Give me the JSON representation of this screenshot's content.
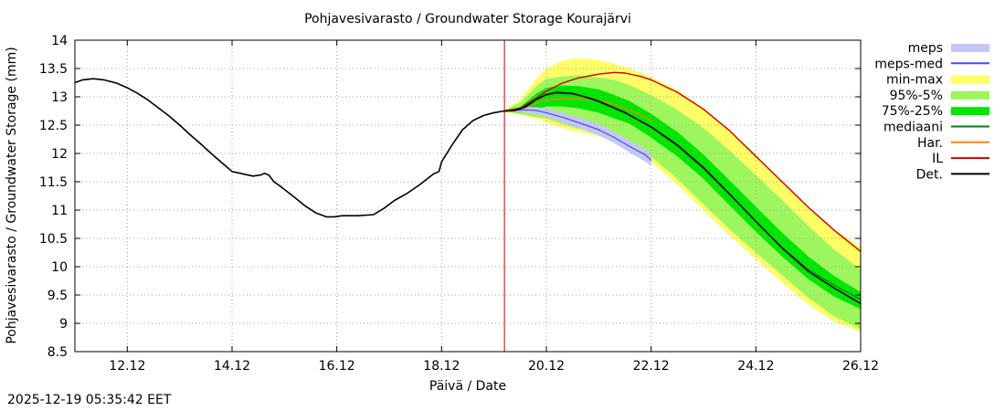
{
  "timestamp": "2025-12-19 05:35:42 EET",
  "chart_data": {
    "type": "line",
    "title": "Pohjavesivarasto / Groundwater Storage   Kourajärvi",
    "xlabel": "Päivä / Date",
    "ylabel": "Pohjavesivarasto / Groundwater Storage (mm)",
    "xlim": [
      11.0,
      26.0
    ],
    "ylim": [
      8.5,
      14.0
    ],
    "grid": true,
    "legend_position": "outside-right",
    "x_ticks": [
      12,
      14,
      16,
      18,
      20,
      22,
      24,
      26
    ],
    "x_tick_labels": [
      "12.12",
      "14.12",
      "16.12",
      "18.12",
      "20.12",
      "22.12",
      "24.12",
      "26.12"
    ],
    "y_ticks": [
      8.5,
      9,
      9.5,
      10,
      10.5,
      11,
      11.5,
      12,
      12.5,
      13,
      13.5,
      14
    ],
    "y_tick_labels": [
      "8.5",
      "9",
      "9.5",
      "10",
      "10.5",
      "11",
      "11.5",
      "12",
      "12.5",
      "13",
      "13.5",
      "14"
    ],
    "forecast_start_x": 19.2,
    "legend": [
      {
        "key": "meps",
        "label": "meps",
        "kind": "band",
        "color": "#c4c7f8"
      },
      {
        "key": "meps_med",
        "label": "meps-med",
        "kind": "line",
        "color": "#4c4ce0"
      },
      {
        "key": "minmax",
        "label": "min-max",
        "kind": "band",
        "color": "#fefe66"
      },
      {
        "key": "p95_5",
        "label": "95%-5%",
        "kind": "band",
        "color": "#9ef65e"
      },
      {
        "key": "p75_25",
        "label": "75%-25%",
        "kind": "band",
        "color": "#00e600"
      },
      {
        "key": "median",
        "label": "mediaani",
        "kind": "line",
        "color": "#008000"
      },
      {
        "key": "har",
        "label": "Har.",
        "kind": "line",
        "color": "#ff8000"
      },
      {
        "key": "il",
        "label": "IL",
        "kind": "line",
        "color": "#d00000"
      },
      {
        "key": "det",
        "label": "Det.",
        "kind": "line",
        "color": "#000000"
      }
    ],
    "colors": {
      "forecast_line": "#c00000",
      "grid": "#a0a0a0",
      "frame": "#000000"
    },
    "series": {
      "observed": {
        "x": [
          11.0,
          11.15,
          11.35,
          11.55,
          11.8,
          12.0,
          12.2,
          12.4,
          12.6,
          12.8,
          13.0,
          13.2,
          13.4,
          13.6,
          13.8,
          14.0,
          14.2,
          14.4,
          14.55,
          14.62,
          14.7,
          14.8,
          14.95,
          15.2,
          15.4,
          15.6,
          15.8,
          15.95,
          16.1,
          16.25,
          16.4,
          16.7,
          16.9,
          17.1,
          17.35,
          17.6,
          17.85,
          17.95,
          18.0,
          18.2,
          18.4,
          18.6,
          18.8,
          19.0,
          19.2
        ],
        "y": [
          13.25,
          13.3,
          13.32,
          13.3,
          13.24,
          13.16,
          13.06,
          12.94,
          12.8,
          12.66,
          12.5,
          12.33,
          12.17,
          12.0,
          11.84,
          11.68,
          11.64,
          11.6,
          11.62,
          11.65,
          11.62,
          11.5,
          11.4,
          11.22,
          11.07,
          10.95,
          10.88,
          10.88,
          10.9,
          10.9,
          10.9,
          10.92,
          11.03,
          11.17,
          11.3,
          11.46,
          11.64,
          11.68,
          11.85,
          12.15,
          12.42,
          12.58,
          12.67,
          12.72,
          12.75
        ]
      },
      "det": {
        "x": [
          19.2,
          19.4,
          19.6,
          19.8,
          20.0,
          20.2,
          20.5,
          20.8,
          21.0,
          21.5,
          22.0,
          22.5,
          23.0,
          23.5,
          24.0,
          24.5,
          25.0,
          25.5,
          26.0
        ],
        "y": [
          12.75,
          12.76,
          12.82,
          12.95,
          13.04,
          13.08,
          13.06,
          12.98,
          12.92,
          12.72,
          12.47,
          12.15,
          11.75,
          11.28,
          10.8,
          10.33,
          9.92,
          9.62,
          9.35
        ]
      },
      "median": {
        "x": [
          19.2,
          19.4,
          19.6,
          19.8,
          20.0,
          20.2,
          20.5,
          20.8,
          21.0,
          21.5,
          22.0,
          22.5,
          23.0,
          23.5,
          24.0,
          24.5,
          25.0,
          25.5,
          26.0
        ],
        "y": [
          12.75,
          12.76,
          12.84,
          12.96,
          13.03,
          13.06,
          13.05,
          12.99,
          12.93,
          12.73,
          12.46,
          12.13,
          11.73,
          11.27,
          10.8,
          10.34,
          9.95,
          9.67,
          9.42
        ]
      },
      "il": {
        "x": [
          19.2,
          19.5,
          19.8,
          20.0,
          20.3,
          20.6,
          21.0,
          21.3,
          21.5,
          21.8,
          22.0,
          22.5,
          23.0,
          23.5,
          24.0,
          24.5,
          25.0,
          25.5,
          26.0
        ],
        "y": [
          12.75,
          12.8,
          12.97,
          13.1,
          13.24,
          13.33,
          13.4,
          13.43,
          13.42,
          13.36,
          13.3,
          13.08,
          12.78,
          12.4,
          11.95,
          11.5,
          11.05,
          10.64,
          10.27
        ]
      },
      "har": {
        "x": [
          19.2,
          19.5,
          19.8,
          20.0,
          20.3,
          20.6,
          21.0,
          21.3,
          21.5,
          21.8,
          22.0
        ],
        "y": [
          12.75,
          12.78,
          12.88,
          12.94,
          12.97,
          12.96,
          12.93,
          12.87,
          12.8,
          12.68,
          12.58
        ]
      },
      "meps_med": {
        "x": [
          19.2,
          19.4,
          19.6,
          19.8,
          20.0,
          20.3,
          20.6,
          21.0,
          21.3,
          21.6,
          21.9,
          22.0
        ],
        "y": [
          12.75,
          12.76,
          12.77,
          12.76,
          12.72,
          12.64,
          12.55,
          12.42,
          12.28,
          12.12,
          11.97,
          11.88
        ]
      },
      "meps": {
        "x": [
          19.2,
          19.4,
          19.6,
          19.8,
          20.0,
          20.3,
          20.6,
          21.0,
          21.3,
          21.6,
          21.9,
          22.0
        ],
        "upper": [
          12.76,
          12.79,
          12.82,
          12.82,
          12.8,
          12.72,
          12.64,
          12.52,
          12.38,
          12.22,
          12.07,
          11.99
        ],
        "lower": [
          12.74,
          12.73,
          12.72,
          12.7,
          12.65,
          12.55,
          12.45,
          12.32,
          12.18,
          12.01,
          11.85,
          11.78
        ]
      },
      "minmax": {
        "x": [
          19.2,
          19.5,
          19.8,
          20.0,
          20.3,
          20.6,
          21.0,
          21.3,
          21.6,
          22.0,
          22.5,
          23.0,
          23.5,
          24.0,
          24.5,
          25.0,
          25.5,
          26.0
        ],
        "upper": [
          12.77,
          12.95,
          13.3,
          13.5,
          13.63,
          13.68,
          13.65,
          13.58,
          13.5,
          13.35,
          13.12,
          12.8,
          12.42,
          11.98,
          11.5,
          11.05,
          10.66,
          10.35
        ],
        "lower": [
          12.72,
          12.68,
          12.62,
          12.55,
          12.45,
          12.38,
          12.3,
          12.22,
          12.1,
          11.85,
          11.45,
          11.0,
          10.55,
          10.13,
          9.72,
          9.33,
          9.03,
          8.85
        ]
      },
      "p95_5": {
        "x": [
          19.2,
          19.5,
          19.8,
          20.0,
          20.3,
          20.6,
          21.0,
          21.3,
          21.6,
          22.0,
          22.5,
          23.0,
          23.5,
          24.0,
          24.5,
          25.0,
          25.5,
          26.0
        ],
        "upper": [
          12.76,
          12.9,
          13.18,
          13.32,
          13.36,
          13.38,
          13.34,
          13.3,
          13.2,
          13.03,
          12.77,
          12.45,
          12.05,
          11.62,
          11.18,
          10.72,
          10.3,
          9.95
        ],
        "lower": [
          12.73,
          12.7,
          12.64,
          12.62,
          12.52,
          12.44,
          12.38,
          12.28,
          12.16,
          11.95,
          11.55,
          11.1,
          10.66,
          10.25,
          9.85,
          9.45,
          9.12,
          8.9
        ]
      },
      "p75_25": {
        "x": [
          19.2,
          19.5,
          19.8,
          20.0,
          20.3,
          20.6,
          21.0,
          21.3,
          21.6,
          22.0,
          22.5,
          23.0,
          23.5,
          24.0,
          24.5,
          25.0,
          25.5,
          26.0
        ],
        "upper": [
          12.76,
          12.82,
          13.05,
          13.16,
          13.2,
          13.19,
          13.13,
          13.03,
          12.92,
          12.7,
          12.38,
          11.98,
          11.52,
          11.06,
          10.6,
          10.18,
          9.83,
          9.55
        ],
        "lower": [
          12.74,
          12.72,
          12.78,
          12.83,
          12.83,
          12.8,
          12.72,
          12.62,
          12.52,
          12.28,
          11.95,
          11.55,
          11.08,
          10.62,
          10.18,
          9.78,
          9.47,
          9.25
        ]
      }
    }
  }
}
